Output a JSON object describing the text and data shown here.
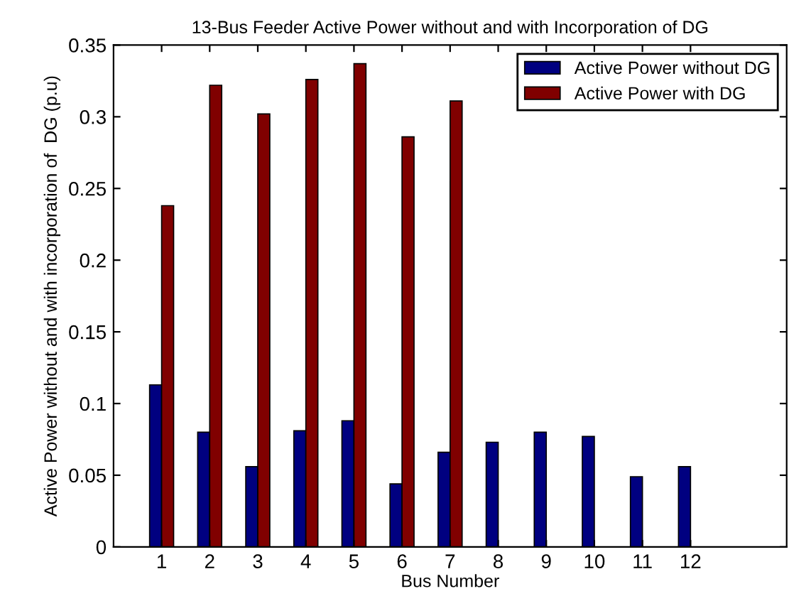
{
  "chart_data": {
    "type": "bar",
    "title": "13-Bus Feeder Active Power without and with Incorporation of DG",
    "xlabel": "Bus Number",
    "ylabel": "Active Power without and with incorporation of  DG (p.u)",
    "categories": [
      "1",
      "2",
      "3",
      "4",
      "5",
      "6",
      "7",
      "8",
      "9",
      "10",
      "11",
      "12"
    ],
    "series": [
      {
        "name": "Active Power without DG",
        "color": "#000080",
        "values": [
          0.113,
          0.08,
          0.056,
          0.081,
          0.088,
          0.044,
          0.066,
          0.073,
          0.08,
          0.077,
          0.049,
          0.056
        ]
      },
      {
        "name": "Active Power with DG",
        "color": "#800000",
        "values": [
          0.238,
          0.322,
          0.302,
          0.326,
          0.337,
          0.286,
          0.311,
          null,
          null,
          null,
          null,
          null
        ]
      }
    ],
    "ylim": [
      0,
      0.35
    ],
    "yticks": [
      0,
      0.05,
      0.1,
      0.15,
      0.2,
      0.25,
      0.3,
      0.35
    ],
    "grid": false,
    "legend": "top right"
  }
}
